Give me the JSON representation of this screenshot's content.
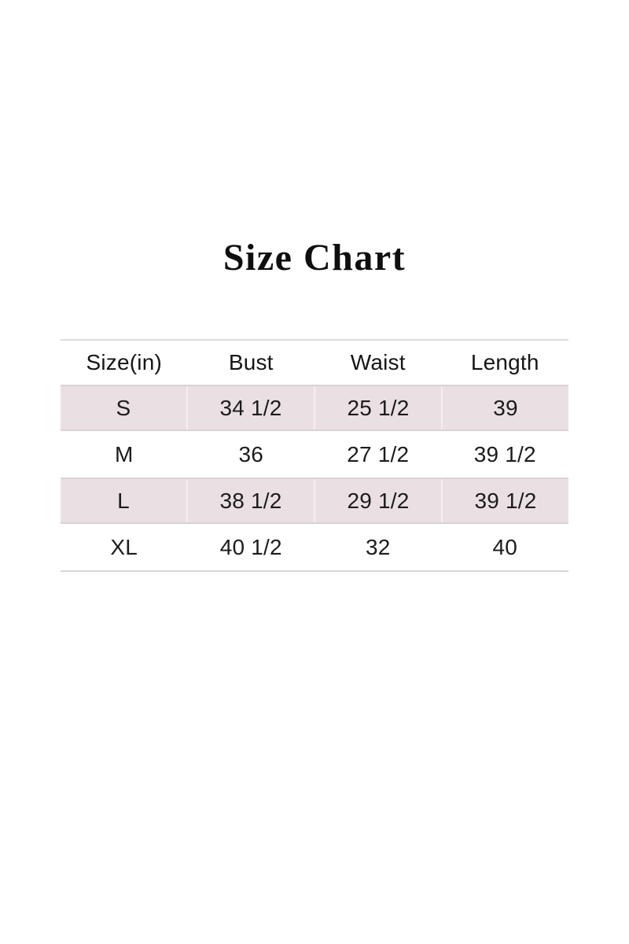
{
  "title": "Size Chart",
  "table": {
    "columns": [
      "Size(in)",
      "Bust",
      "Waist",
      "Length"
    ],
    "rows": [
      {
        "size": "S",
        "cells": [
          "S",
          "34 1/2",
          "25 1/2",
          "39"
        ]
      },
      {
        "size": "M",
        "cells": [
          "M",
          "36",
          "27 1/2",
          "39 1/2"
        ]
      },
      {
        "size": "L",
        "cells": [
          "L",
          "38 1/2",
          "29 1/2",
          "39 1/2"
        ]
      },
      {
        "size": "XL",
        "cells": [
          "XL",
          "40 1/2",
          "32",
          "40"
        ]
      }
    ],
    "colors": {
      "stripe_background": "#eae0e3",
      "stripe_edge": "#dbd1d5",
      "stripe_separator": "#f4eef1",
      "rule_line": "#dcdcdc",
      "text": "#1c1c1c"
    }
  }
}
